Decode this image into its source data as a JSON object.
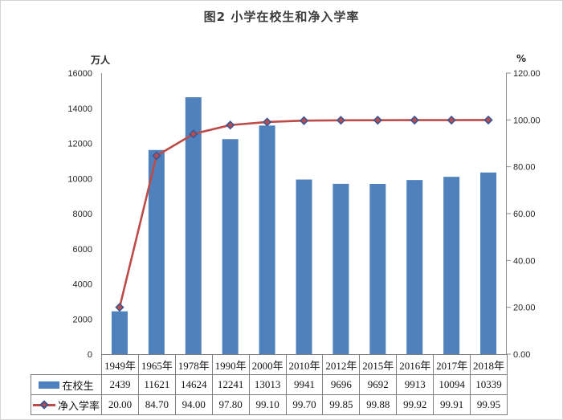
{
  "title": "图2  小学在校生和净入学率",
  "chart_data": {
    "type": "combo-bar-line",
    "title": "图2  小学在校生和净入学率",
    "categories": [
      "1949年",
      "1965年",
      "1978年",
      "1990年",
      "2000年",
      "2010年",
      "2012年",
      "2015年",
      "2016年",
      "2017年",
      "2018年"
    ],
    "series": [
      {
        "name": "在校生",
        "type": "bar",
        "axis": "left",
        "color": "#4F81BD",
        "values": [
          2439,
          11621,
          14624,
          12241,
          13013,
          9941,
          9696,
          9692,
          9913,
          10094,
          10339
        ],
        "display": [
          "2439",
          "11621",
          "14624",
          "12241",
          "13013",
          "9941",
          "9696",
          "9692",
          "9913",
          "10094",
          "10339"
        ]
      },
      {
        "name": "净入学率",
        "type": "line",
        "axis": "right",
        "color": "#BE4B48",
        "marker": "diamond",
        "marker_border_color": "#3A5795",
        "values": [
          20.0,
          84.7,
          94.0,
          97.8,
          99.1,
          99.7,
          99.85,
          99.88,
          99.92,
          99.91,
          99.95
        ],
        "display": [
          "20.00",
          "84.70",
          "94.00",
          "97.80",
          "99.10",
          "99.70",
          "99.85",
          "99.88",
          "99.92",
          "99.91",
          "99.95"
        ]
      }
    ],
    "left_axis": {
      "label": "万人",
      "min": 0,
      "max": 16000,
      "step": 2000,
      "ticks": [
        "0",
        "2000",
        "4000",
        "6000",
        "8000",
        "10000",
        "12000",
        "14000",
        "16000"
      ]
    },
    "right_axis": {
      "label": "%",
      "min": 0,
      "max": 120,
      "step": 20,
      "ticks": [
        "0.00",
        "20.00",
        "40.00",
        "60.00",
        "80.00",
        "100.00",
        "120.00"
      ]
    },
    "grid": false,
    "legend_position": "data-table-left",
    "data_table_shown": true
  }
}
